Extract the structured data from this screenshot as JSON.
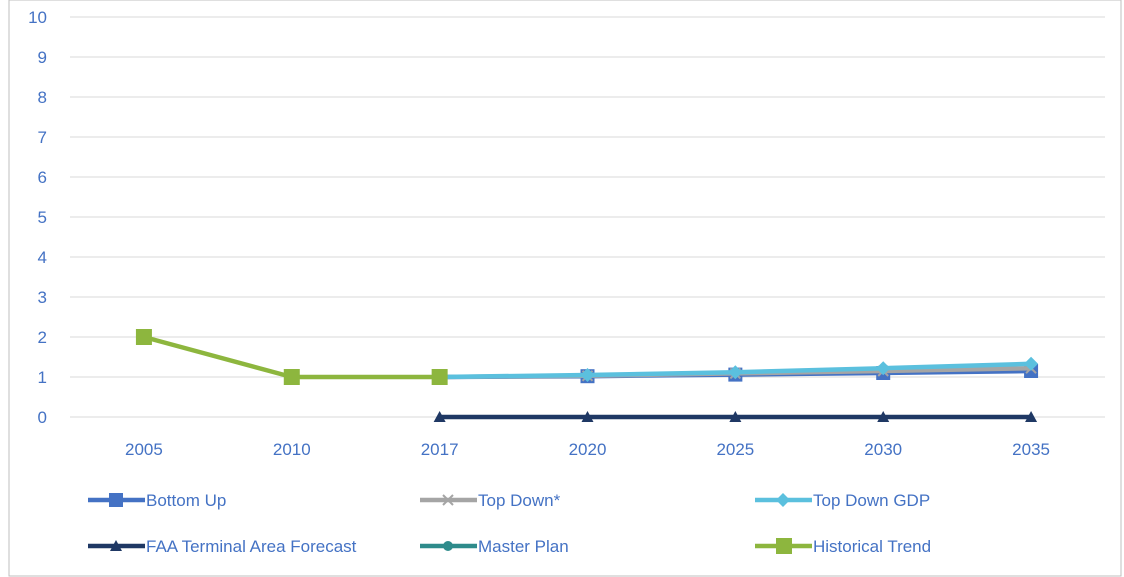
{
  "chart_data": {
    "type": "line",
    "title": "",
    "xlabel": "",
    "ylabel": "",
    "categories": [
      "2005",
      "2010",
      "2017",
      "2020",
      "2025",
      "2030",
      "2035"
    ],
    "ylim": [
      0,
      10
    ],
    "yticks": [
      "0",
      "1",
      "2",
      "3",
      "4",
      "5",
      "6",
      "7",
      "8",
      "9",
      "10"
    ],
    "grid": true,
    "legend_position": "bottom",
    "series": [
      {
        "name": "Bottom Up",
        "color": "#4472C4",
        "marker": "square",
        "values": [
          null,
          null,
          1.0,
          1.02,
          1.06,
          1.1,
          1.15
        ]
      },
      {
        "name": "Top Down*",
        "color": "#A5A5A5",
        "marker": "x",
        "values": [
          null,
          null,
          1.0,
          1.03,
          1.09,
          1.15,
          1.22
        ]
      },
      {
        "name": "Top Down GDP",
        "color": "#5BC0DE",
        "marker": "diamond",
        "values": [
          null,
          null,
          1.0,
          1.05,
          1.12,
          1.22,
          1.33
        ]
      },
      {
        "name": "FAA Terminal Area Forecast",
        "color": "#1F3864",
        "marker": "triangle",
        "values": [
          null,
          null,
          0,
          0,
          0,
          0,
          0
        ]
      },
      {
        "name": "Master Plan",
        "color": "#2E8B8B",
        "marker": "circle",
        "values": [
          null,
          null,
          null,
          null,
          null,
          null,
          null
        ]
      },
      {
        "name": "Historical Trend",
        "color": "#8DB63E",
        "marker": "square",
        "values": [
          2,
          1,
          1,
          null,
          null,
          null,
          null
        ]
      }
    ]
  }
}
